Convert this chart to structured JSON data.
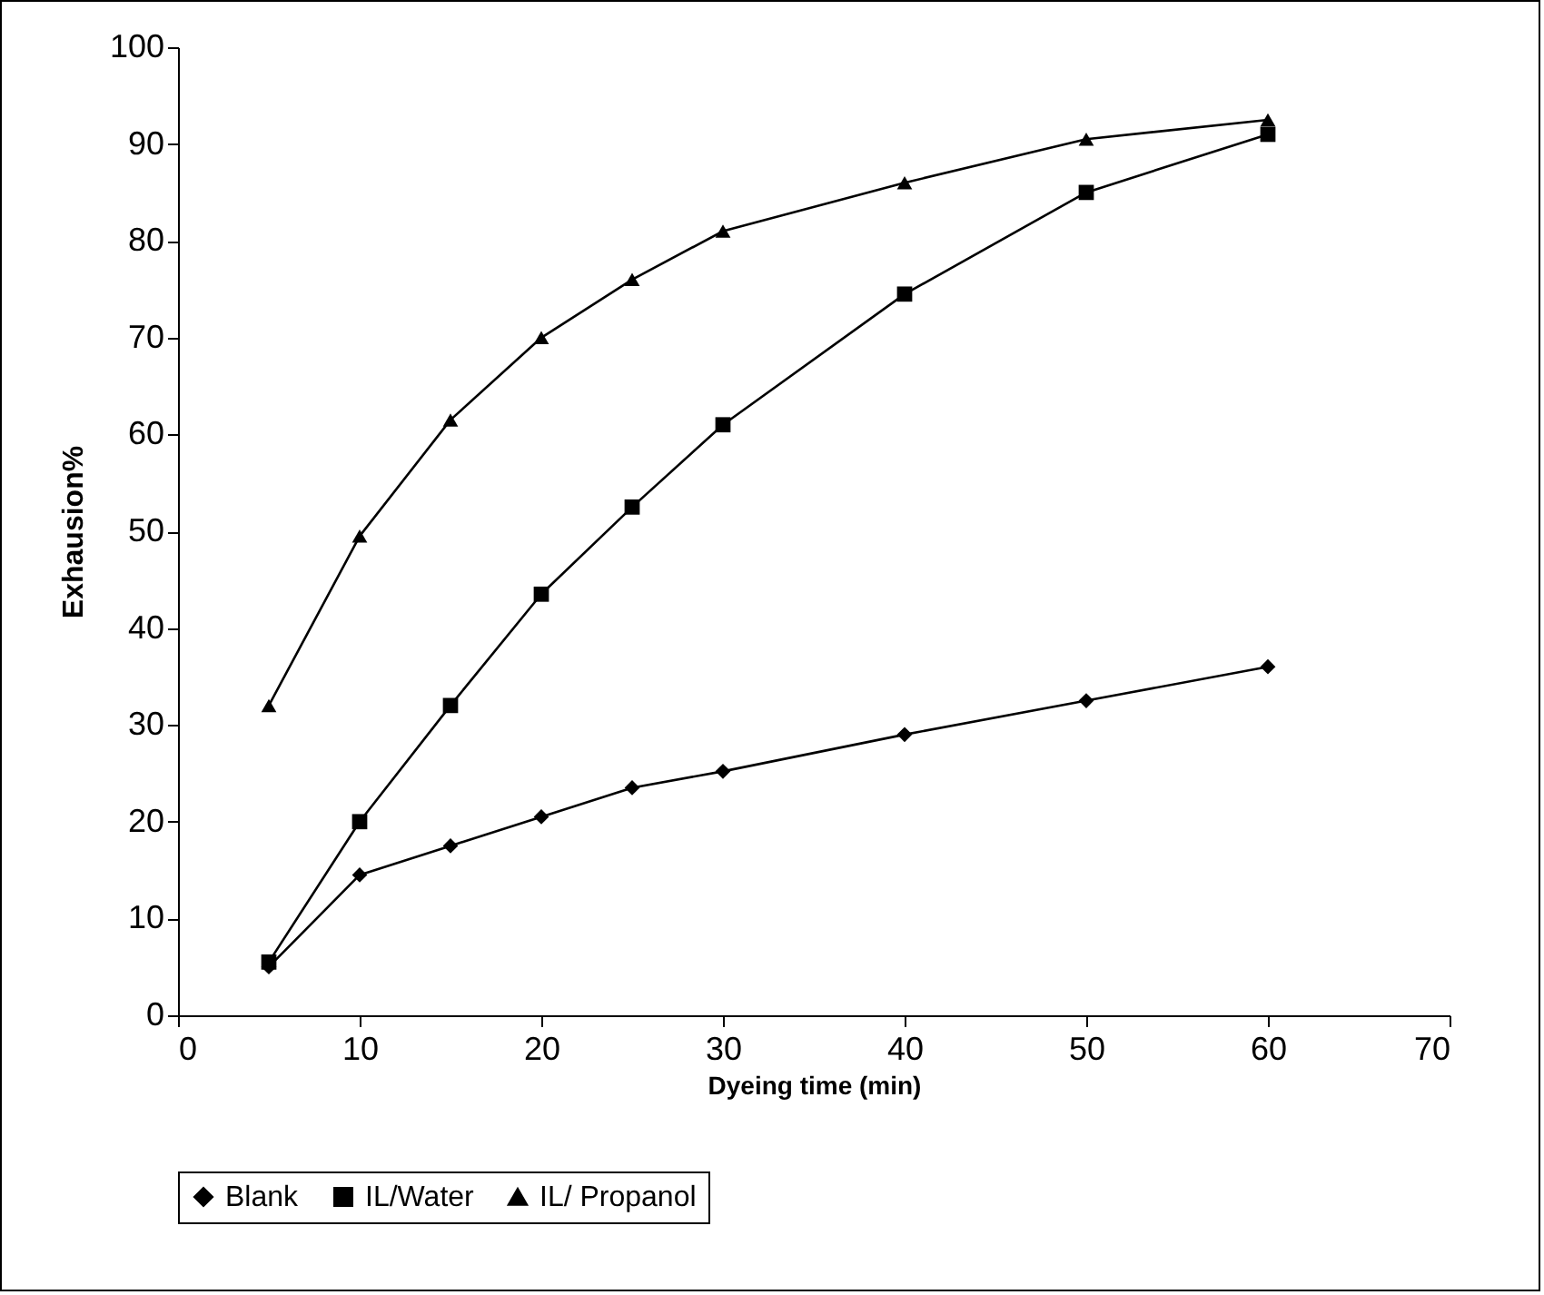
{
  "chart_data": {
    "type": "line",
    "xlabel": "Dyeing time (min)",
    "ylabel": "Exhausion%",
    "x": [
      5,
      10,
      15,
      20,
      25,
      30,
      40,
      50,
      60
    ],
    "xlim": [
      0,
      70
    ],
    "xticks": [
      0,
      10,
      20,
      30,
      40,
      50,
      60,
      70
    ],
    "ylim": [
      0,
      100
    ],
    "yticks": [
      0,
      10,
      20,
      30,
      40,
      50,
      60,
      70,
      80,
      90,
      100
    ],
    "grid": false,
    "legend": "bottom left",
    "line_style": "solid",
    "series": [
      {
        "name": "Blank",
        "color": "#000000",
        "marker": "diamond",
        "values": [
          5,
          14.5,
          17.5,
          20.5,
          23.5,
          25.2,
          29,
          32.5,
          36
        ]
      },
      {
        "name": "IL/Water",
        "color": "#000000",
        "marker": "square",
        "values": [
          5.5,
          20,
          32,
          43.5,
          52.5,
          61,
          74.5,
          85,
          91
        ]
      },
      {
        "name": "IL/ Propanol",
        "color": "#000000",
        "marker": "triangle",
        "values": [
          32,
          49.5,
          61.5,
          70,
          76,
          81,
          86,
          90.5,
          92.5
        ]
      }
    ]
  }
}
